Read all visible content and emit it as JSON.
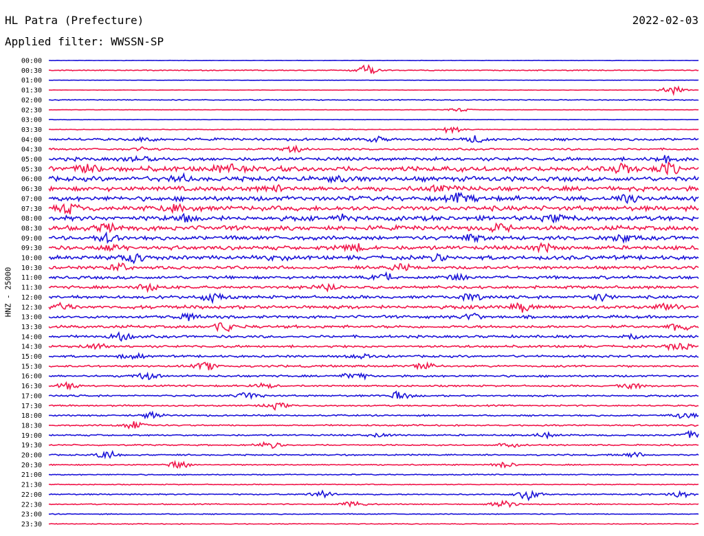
{
  "header": {
    "station": "HL Patra (Prefecture)",
    "date": "2022-02-03",
    "filter_text": "Applied filter: WWSSN-SP"
  },
  "channel_label": "HNZ - 25000",
  "colors": {
    "blue": "#1a12d8",
    "red": "#f0164a"
  },
  "chart_data": {
    "type": "line",
    "title": "HL Patra (Prefecture)",
    "ylabel": "HNZ - 25000",
    "row_labels": [
      "00:00",
      "00:30",
      "01:00",
      "01:30",
      "02:00",
      "02:30",
      "03:00",
      "03:30",
      "04:00",
      "04:30",
      "05:00",
      "05:30",
      "06:00",
      "06:30",
      "07:00",
      "07:30",
      "08:00",
      "08:30",
      "09:00",
      "09:30",
      "10:00",
      "10:30",
      "11:00",
      "11:30",
      "12:00",
      "12:30",
      "13:00",
      "13:30",
      "14:00",
      "14:30",
      "15:00",
      "15:30",
      "16:00",
      "16:30",
      "17:00",
      "17:30",
      "18:00",
      "18:30",
      "19:00",
      "19:30",
      "20:00",
      "20:30",
      "21:00",
      "21:30",
      "22:00",
      "22:30",
      "23:00",
      "23:30"
    ],
    "row_colors": [
      "blue",
      "red"
    ],
    "noise_level": [
      0.25,
      0.6,
      0.2,
      0.25,
      0.6,
      0.25,
      0.3,
      0.4,
      1.6,
      1.2,
      2.2,
      3.2,
      3.0,
      3.0,
      3.0,
      3.0,
      3.0,
      3.0,
      2.6,
      2.5,
      2.6,
      2.0,
      2.0,
      1.9,
      1.9,
      2.2,
      1.8,
      1.8,
      1.6,
      1.5,
      1.4,
      1.3,
      1.3,
      1.1,
      1.1,
      1.0,
      1.0,
      1.0,
      1.0,
      0.9,
      0.9,
      0.8,
      0.7,
      0.6,
      0.8,
      0.7,
      0.6,
      0.5
    ],
    "events": [
      [],
      [
        [
          0.49,
          8
        ]
      ],
      [],
      [
        [
          0.96,
          6
        ]
      ],
      [],
      [
        [
          0.63,
          3
        ]
      ],
      [],
      [
        [
          0.62,
          6
        ]
      ],
      [
        [
          0.15,
          3
        ],
        [
          0.5,
          4
        ],
        [
          0.66,
          5
        ]
      ],
      [
        [
          0.38,
          5
        ],
        [
          0.15,
          3
        ]
      ],
      [
        [
          0.14,
          4
        ],
        [
          0.95,
          4
        ]
      ],
      [
        [
          0.06,
          8
        ],
        [
          0.27,
          7
        ],
        [
          0.95,
          8
        ],
        [
          0.88,
          7
        ]
      ],
      [
        [
          0.2,
          5
        ],
        [
          0.45,
          4
        ]
      ],
      [
        [
          0.35,
          4
        ],
        [
          0.61,
          5
        ]
      ],
      [
        [
          0.63,
          7
        ],
        [
          0.89,
          6
        ]
      ],
      [
        [
          0.03,
          6
        ],
        [
          0.2,
          5
        ]
      ],
      [
        [
          0.21,
          5
        ],
        [
          0.45,
          4
        ],
        [
          0.78,
          4
        ]
      ],
      [
        [
          0.09,
          5
        ],
        [
          0.69,
          5
        ]
      ],
      [
        [
          0.09,
          6
        ],
        [
          0.65,
          5
        ],
        [
          0.88,
          6
        ]
      ],
      [
        [
          0.1,
          5
        ],
        [
          0.47,
          5
        ],
        [
          0.76,
          6
        ]
      ],
      [
        [
          0.13,
          7
        ],
        [
          0.35,
          4
        ],
        [
          0.6,
          4
        ]
      ],
      [
        [
          0.11,
          6
        ],
        [
          0.54,
          5
        ]
      ],
      [
        [
          0.52,
          5
        ],
        [
          0.63,
          5
        ]
      ],
      [
        [
          0.15,
          5
        ],
        [
          0.43,
          5
        ]
      ],
      [
        [
          0.25,
          6
        ],
        [
          0.65,
          5
        ],
        [
          0.85,
          6
        ]
      ],
      [
        [
          0.02,
          5
        ],
        [
          0.73,
          6
        ],
        [
          0.95,
          5
        ]
      ],
      [
        [
          0.21,
          5
        ],
        [
          0.65,
          5
        ]
      ],
      [
        [
          0.27,
          7
        ],
        [
          0.97,
          6
        ]
      ],
      [
        [
          0.11,
          6
        ],
        [
          0.9,
          5
        ]
      ],
      [
        [
          0.07,
          5
        ],
        [
          0.97,
          7
        ]
      ],
      [
        [
          0.13,
          5
        ],
        [
          0.48,
          4
        ]
      ],
      [
        [
          0.24,
          6
        ],
        [
          0.58,
          5
        ]
      ],
      [
        [
          0.15,
          5
        ],
        [
          0.47,
          6
        ]
      ],
      [
        [
          0.03,
          5
        ],
        [
          0.33,
          4
        ],
        [
          0.9,
          5
        ]
      ],
      [
        [
          0.31,
          6
        ],
        [
          0.54,
          6
        ]
      ],
      [
        [
          0.35,
          5
        ]
      ],
      [
        [
          0.16,
          5
        ],
        [
          0.98,
          6
        ]
      ],
      [
        [
          0.13,
          6
        ]
      ],
      [
        [
          0.51,
          4
        ],
        [
          0.77,
          5
        ],
        [
          0.99,
          6
        ]
      ],
      [
        [
          0.34,
          5
        ],
        [
          0.71,
          5
        ]
      ],
      [
        [
          0.09,
          6
        ],
        [
          0.9,
          4
        ]
      ],
      [
        [
          0.2,
          5
        ],
        [
          0.7,
          4
        ]
      ],
      [],
      [],
      [
        [
          0.42,
          6
        ],
        [
          0.74,
          9
        ],
        [
          0.97,
          5
        ]
      ],
      [
        [
          0.47,
          5
        ],
        [
          0.7,
          7
        ]
      ],
      [],
      []
    ]
  }
}
